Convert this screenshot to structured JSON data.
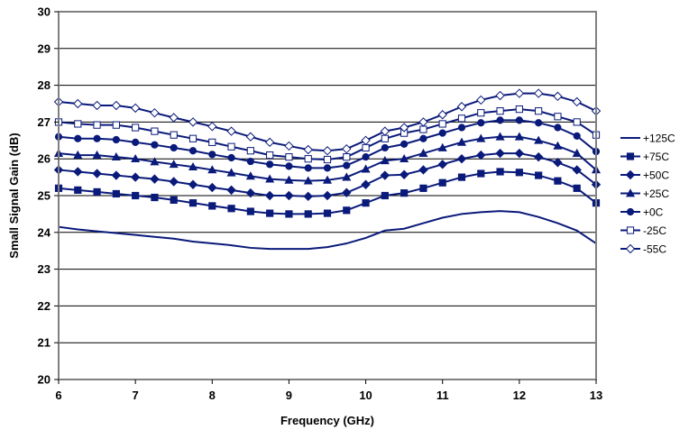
{
  "chart_data": {
    "type": "line",
    "title": "",
    "xlabel": "Frequency (GHz)",
    "ylabel": "Small Signal Gain (dB)",
    "xlim": [
      6,
      13
    ],
    "ylim": [
      20,
      30
    ],
    "x_ticks": [
      "6",
      "7",
      "8",
      "9",
      "10",
      "11",
      "12",
      "13"
    ],
    "y_ticks": [
      "20",
      "21",
      "22",
      "23",
      "24",
      "25",
      "26",
      "27",
      "28",
      "29",
      "30"
    ],
    "grid": "horizontal",
    "legend_position": "right",
    "line_color": "#0a1a7a",
    "x": [
      6.0,
      6.25,
      6.5,
      6.75,
      7.0,
      7.25,
      7.5,
      7.75,
      8.0,
      8.25,
      8.5,
      8.75,
      9.0,
      9.25,
      9.5,
      9.75,
      10.0,
      10.25,
      10.5,
      10.75,
      11.0,
      11.25,
      11.5,
      11.75,
      12.0,
      12.25,
      12.5,
      12.75,
      13.0
    ],
    "series": [
      {
        "name": "+125C",
        "marker": "none",
        "values": [
          24.15,
          24.08,
          24.03,
          23.98,
          23.93,
          23.88,
          23.83,
          23.75,
          23.7,
          23.65,
          23.58,
          23.55,
          23.55,
          23.55,
          23.6,
          23.7,
          23.85,
          24.05,
          24.1,
          24.25,
          24.4,
          24.5,
          24.55,
          24.58,
          24.55,
          24.42,
          24.25,
          24.05,
          23.7
        ]
      },
      {
        "name": "+75C",
        "marker": "square-filled",
        "values": [
          25.2,
          25.15,
          25.1,
          25.05,
          25.0,
          24.95,
          24.88,
          24.8,
          24.72,
          24.65,
          24.57,
          24.52,
          24.5,
          24.5,
          24.52,
          24.6,
          24.8,
          25.0,
          25.07,
          25.2,
          25.35,
          25.5,
          25.6,
          25.65,
          25.63,
          25.55,
          25.4,
          25.2,
          24.8
        ]
      },
      {
        "name": "+50C",
        "marker": "diamond-filled",
        "values": [
          25.7,
          25.65,
          25.6,
          25.55,
          25.5,
          25.45,
          25.38,
          25.3,
          25.22,
          25.15,
          25.07,
          25.0,
          25.0,
          24.98,
          25.0,
          25.08,
          25.3,
          25.55,
          25.57,
          25.7,
          25.85,
          26.0,
          26.1,
          26.15,
          26.15,
          26.05,
          25.9,
          25.7,
          25.3
        ]
      },
      {
        "name": "+25C",
        "marker": "triangle-filled",
        "values": [
          26.15,
          26.1,
          26.1,
          26.05,
          26.0,
          25.92,
          25.85,
          25.78,
          25.7,
          25.62,
          25.53,
          25.45,
          25.42,
          25.4,
          25.42,
          25.5,
          25.72,
          25.95,
          26.0,
          26.15,
          26.3,
          26.45,
          26.55,
          26.6,
          26.6,
          26.5,
          26.35,
          26.15,
          25.7
        ]
      },
      {
        "name": "+0C",
        "marker": "circle-filled",
        "values": [
          26.6,
          26.55,
          26.55,
          26.52,
          26.45,
          26.38,
          26.3,
          26.22,
          26.12,
          26.03,
          25.93,
          25.85,
          25.8,
          25.75,
          25.75,
          25.82,
          26.05,
          26.3,
          26.4,
          26.55,
          26.7,
          26.85,
          26.98,
          27.05,
          27.05,
          26.98,
          26.85,
          26.62,
          26.2
        ]
      },
      {
        "name": "-25C",
        "marker": "square-open",
        "values": [
          27.0,
          26.95,
          26.92,
          26.92,
          26.85,
          26.75,
          26.65,
          26.55,
          26.45,
          26.33,
          26.22,
          26.1,
          26.05,
          26.0,
          25.98,
          26.05,
          26.3,
          26.55,
          26.7,
          26.8,
          26.95,
          27.1,
          27.25,
          27.3,
          27.35,
          27.3,
          27.15,
          27.0,
          26.65
        ]
      },
      {
        "name": "-55C",
        "marker": "diamond-open",
        "values": [
          27.55,
          27.5,
          27.45,
          27.45,
          27.38,
          27.25,
          27.12,
          27.0,
          26.88,
          26.75,
          26.6,
          26.45,
          26.35,
          26.25,
          26.22,
          26.27,
          26.5,
          26.75,
          26.85,
          27.0,
          27.2,
          27.42,
          27.6,
          27.72,
          27.78,
          27.78,
          27.7,
          27.55,
          27.3
        ]
      }
    ]
  }
}
